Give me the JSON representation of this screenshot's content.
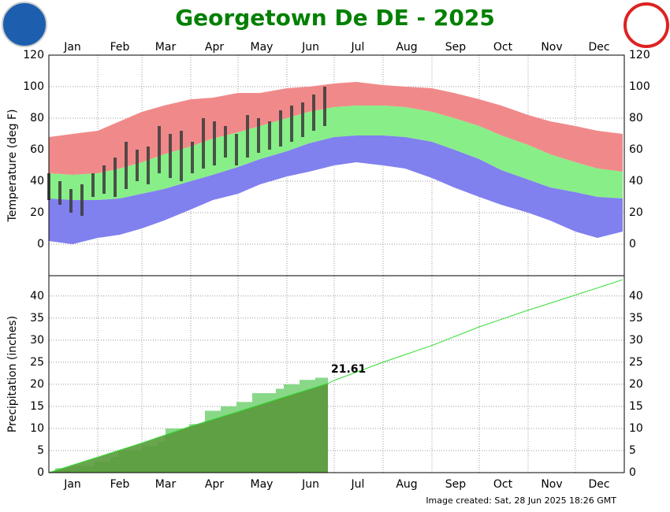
{
  "title": "Georgetown De DE - 2025",
  "footer": "Image created: Sat, 28 Jun 2025 18:26 GMT",
  "chart_data": [
    {
      "type": "temperature_bands",
      "ylabel": "Temperature (deg F)",
      "xlim": [
        1,
        366
      ],
      "xgrid": [
        1,
        32,
        60,
        91,
        121,
        152,
        182,
        213,
        244,
        274,
        305,
        335,
        366
      ],
      "xticks": [
        {
          "value": 16,
          "label": "Jan"
        },
        {
          "value": 46,
          "label": "Feb"
        },
        {
          "value": 75,
          "label": "Mar"
        },
        {
          "value": 106,
          "label": "Apr"
        },
        {
          "value": 136,
          "label": "May"
        },
        {
          "value": 167,
          "label": "Jun"
        },
        {
          "value": 197,
          "label": "Jul"
        },
        {
          "value": 228,
          "label": "Aug"
        },
        {
          "value": 259,
          "label": "Sep"
        },
        {
          "value": 289,
          "label": "Oct"
        },
        {
          "value": 320,
          "label": "Nov"
        },
        {
          "value": 350,
          "label": "Dec"
        }
      ],
      "ylim": [
        -20,
        120
      ],
      "yticks": [
        0,
        20,
        40,
        60,
        80,
        100,
        120
      ],
      "x": [
        1,
        16,
        32,
        46,
        60,
        74,
        91,
        105,
        121,
        135,
        152,
        166,
        182,
        196,
        213,
        227,
        244,
        258,
        274,
        288,
        305,
        319,
        335,
        349,
        365
      ],
      "record_high": [
        68,
        70,
        72,
        78,
        84,
        88,
        92,
        93,
        96,
        96,
        99,
        100,
        102,
        103,
        101,
        100,
        99,
        96,
        92,
        88,
        82,
        78,
        75,
        72,
        70
      ],
      "normal_high": [
        45,
        44,
        45,
        48,
        52,
        57,
        62,
        67,
        71,
        75,
        80,
        84,
        87,
        88,
        88,
        87,
        84,
        80,
        75,
        69,
        63,
        57,
        52,
        48,
        46
      ],
      "normal_low": [
        29,
        28,
        28,
        29,
        32,
        35,
        40,
        44,
        49,
        54,
        59,
        64,
        68,
        69,
        69,
        68,
        65,
        60,
        54,
        47,
        41,
        36,
        33,
        30,
        29
      ],
      "record_low": [
        2,
        0,
        4,
        6,
        10,
        15,
        22,
        28,
        32,
        38,
        43,
        46,
        50,
        52,
        50,
        48,
        42,
        36,
        30,
        25,
        20,
        15,
        8,
        4,
        8
      ],
      "colors": {
        "record": "#f08a8a",
        "normal": "#88ee88",
        "low": "#8080ee",
        "observed": "#3a3a3a"
      },
      "x_observed": [
        1,
        8,
        15,
        22,
        29,
        36,
        43,
        50,
        57,
        64,
        71,
        78,
        85,
        92,
        99,
        106,
        113,
        120,
        127,
        134,
        141,
        148,
        155,
        162,
        169,
        176
      ],
      "observed_high": [
        45,
        40,
        35,
        38,
        45,
        50,
        55,
        65,
        60,
        62,
        75,
        70,
        72,
        65,
        80,
        78,
        75,
        70,
        82,
        80,
        78,
        85,
        88,
        90,
        95,
        100
      ],
      "observed_low": [
        28,
        25,
        20,
        18,
        30,
        32,
        30,
        35,
        40,
        38,
        45,
        42,
        40,
        45,
        48,
        50,
        55,
        50,
        55,
        58,
        60,
        62,
        65,
        68,
        72,
        75
      ]
    },
    {
      "type": "precip_cumulative",
      "ylabel": "Precipitation (inches)",
      "xlim": [
        1,
        366
      ],
      "xgrid": [
        1,
        32,
        60,
        91,
        121,
        152,
        182,
        213,
        244,
        274,
        305,
        335,
        366
      ],
      "xticks": [
        {
          "value": 16,
          "label": "Jan"
        },
        {
          "value": 46,
          "label": "Feb"
        },
        {
          "value": 75,
          "label": "Mar"
        },
        {
          "value": 106,
          "label": "Apr"
        },
        {
          "value": 136,
          "label": "May"
        },
        {
          "value": 167,
          "label": "Jun"
        },
        {
          "value": 197,
          "label": "Jul"
        },
        {
          "value": 228,
          "label": "Aug"
        },
        {
          "value": 259,
          "label": "Sep"
        },
        {
          "value": 289,
          "label": "Oct"
        },
        {
          "value": 320,
          "label": "Nov"
        },
        {
          "value": 350,
          "label": "Dec"
        }
      ],
      "ylim": [
        0,
        44.6
      ],
      "yticks": [
        0,
        5,
        10,
        15,
        20,
        25,
        30,
        35,
        40
      ],
      "colors": {
        "observed": "#88d888",
        "normal_fill": "#5a9a3c",
        "normal_line": "#33dd33"
      },
      "x_observed": [
        1,
        5,
        15,
        30,
        40,
        45,
        60,
        70,
        75,
        90,
        100,
        110,
        120,
        130,
        145,
        150,
        160,
        170,
        178
      ],
      "observed": [
        0.2,
        1,
        1.5,
        2.5,
        3.5,
        5,
        6,
        7,
        10,
        11,
        14,
        15,
        16,
        18,
        19,
        20,
        21,
        21.5,
        21.61
      ],
      "x_normal": [
        1,
        32,
        60,
        91,
        121,
        152,
        178,
        182,
        213,
        244,
        274,
        305,
        335,
        365
      ],
      "normal": [
        0,
        3.5,
        6.7,
        10.5,
        13.8,
        17.3,
        20.2,
        20.9,
        25,
        28.8,
        33,
        36.8,
        40.2,
        43.7
      ]
    }
  ]
}
